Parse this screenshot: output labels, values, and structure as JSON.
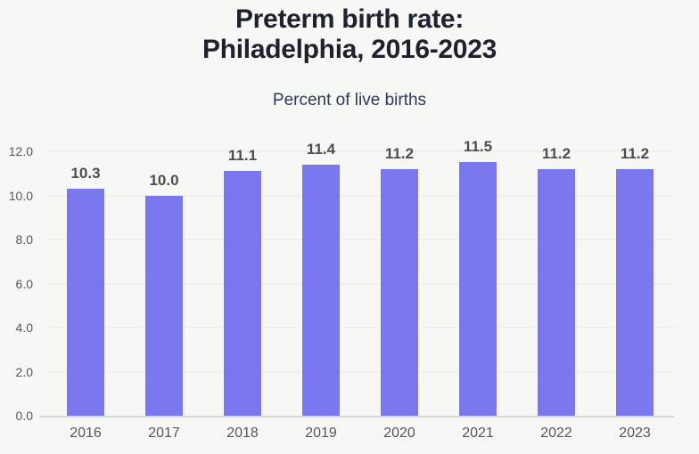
{
  "header": {
    "title_line1": "Preterm birth rate:",
    "title_line2": "Philadelphia, 2016-2023",
    "subtitle": "Percent of live births"
  },
  "colors": {
    "background": "#f7f7f5",
    "bar": "#7b78ee",
    "title": "#1d222e",
    "subtitle": "#2c3a54",
    "data_label": "#4d4d4d",
    "axis_label": "#55565a",
    "gridline": "#e9e8e5",
    "baseline": "#d9d9dc"
  },
  "chart_data": {
    "type": "bar",
    "title": "Preterm birth rate: Philadelphia, 2016-2023",
    "subtitle": "Percent of live births",
    "categories": [
      "2016",
      "2017",
      "2018",
      "2019",
      "2020",
      "2021",
      "2022",
      "2023"
    ],
    "values": [
      10.3,
      10.0,
      11.1,
      11.4,
      11.2,
      11.5,
      11.2,
      11.2
    ],
    "value_labels": [
      "10.3",
      "10.0",
      "11.1",
      "11.4",
      "11.2",
      "11.5",
      "11.2",
      "11.2"
    ],
    "ylim": [
      0,
      12
    ],
    "ytick_interval": 2,
    "ytick_labels": [
      "0.0",
      "2.0",
      "4.0",
      "6.0",
      "8.0",
      "10.0",
      "12.0"
    ],
    "grid": true,
    "legend": false,
    "bar_data_labels": "above bars"
  }
}
